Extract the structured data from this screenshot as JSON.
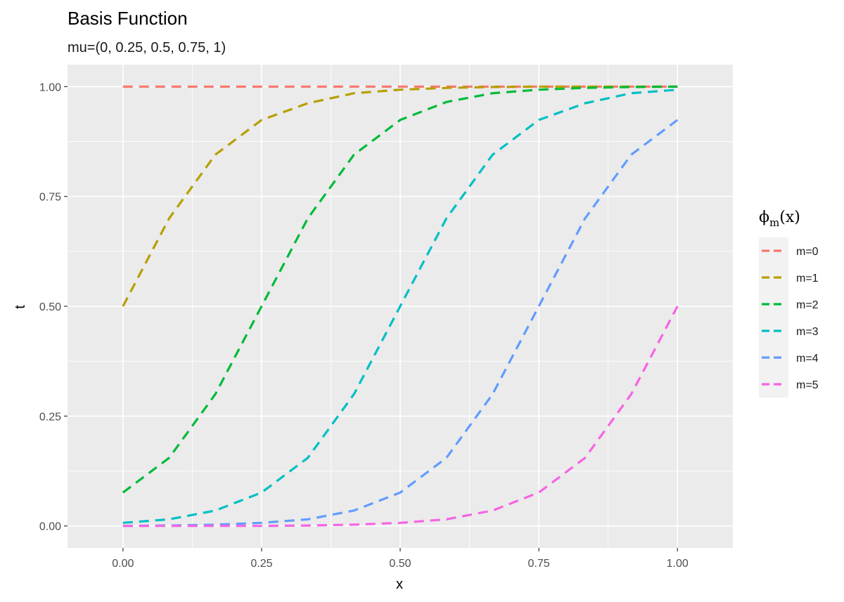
{
  "chart_data": {
    "type": "line",
    "title": "Basis Function",
    "subtitle": "mu=(0, 0.25, 0.5, 0.75, 1)",
    "xlabel": "x",
    "ylabel": "t",
    "xlim": [
      -0.1,
      1.1
    ],
    "ylim": [
      -0.05,
      1.05
    ],
    "x_ticks": [
      "0.00",
      "0.25",
      "0.50",
      "0.75",
      "1.00"
    ],
    "y_ticks": [
      "0.00",
      "0.25",
      "0.50",
      "0.75",
      "1.00"
    ],
    "grid": true,
    "line_style": "dashed",
    "legend": {
      "title_main": "ϕ",
      "title_sub": "m",
      "title_tail": "(x)",
      "position": "right"
    },
    "series": [
      {
        "name": "m=0",
        "color": "#F8766D",
        "x": [
          0,
          0.25,
          0.5,
          0.75,
          1.0
        ],
        "y": [
          1.0,
          1.0,
          1.0,
          1.0,
          1.0
        ]
      },
      {
        "name": "m=1",
        "color": "#B79F00",
        "x": [
          0,
          0.0833,
          0.1667,
          0.25,
          0.3333,
          0.4167,
          0.5,
          0.5833,
          0.6667,
          0.75,
          0.8333,
          0.9167,
          1.0
        ],
        "y": [
          0.5,
          0.7,
          0.845,
          0.924,
          0.962,
          0.985,
          0.993,
          0.997,
          0.999,
          1.0,
          1.0,
          1.0,
          1.0
        ]
      },
      {
        "name": "m=2",
        "color": "#00BA38",
        "x": [
          0,
          0.0833,
          0.1667,
          0.25,
          0.3333,
          0.4167,
          0.5,
          0.5833,
          0.6667,
          0.75,
          0.8333,
          0.9167,
          1.0
        ],
        "y": [
          0.076,
          0.155,
          0.3,
          0.5,
          0.7,
          0.845,
          0.924,
          0.965,
          0.985,
          0.993,
          0.997,
          0.999,
          1.0
        ]
      },
      {
        "name": "m=3",
        "color": "#00BFC4",
        "x": [
          0,
          0.0833,
          0.1667,
          0.25,
          0.3333,
          0.4167,
          0.5,
          0.5833,
          0.6667,
          0.75,
          0.8333,
          0.9167,
          1.0
        ],
        "y": [
          0.007,
          0.015,
          0.035,
          0.076,
          0.155,
          0.3,
          0.5,
          0.7,
          0.845,
          0.924,
          0.962,
          0.985,
          0.993
        ]
      },
      {
        "name": "m=4",
        "color": "#619CFF",
        "x": [
          0,
          0.0833,
          0.1667,
          0.25,
          0.3333,
          0.4167,
          0.5,
          0.5833,
          0.6667,
          0.75,
          0.8333,
          0.9167,
          1.0
        ],
        "y": [
          0.0,
          0.001,
          0.003,
          0.007,
          0.015,
          0.035,
          0.076,
          0.155,
          0.3,
          0.5,
          0.7,
          0.845,
          0.924
        ]
      },
      {
        "name": "m=5",
        "color": "#F564E3",
        "x": [
          0,
          0.0833,
          0.1667,
          0.25,
          0.3333,
          0.4167,
          0.5,
          0.5833,
          0.6667,
          0.75,
          0.8333,
          0.9167,
          1.0
        ],
        "y": [
          0.0,
          0.0,
          0.0,
          0.0,
          0.001,
          0.003,
          0.007,
          0.015,
          0.035,
          0.076,
          0.155,
          0.3,
          0.5
        ]
      }
    ]
  },
  "colors": {
    "panel_background": "#EBEBEB",
    "grid_major": "#FFFFFF",
    "legend_key_background": "#F2F2F2"
  }
}
